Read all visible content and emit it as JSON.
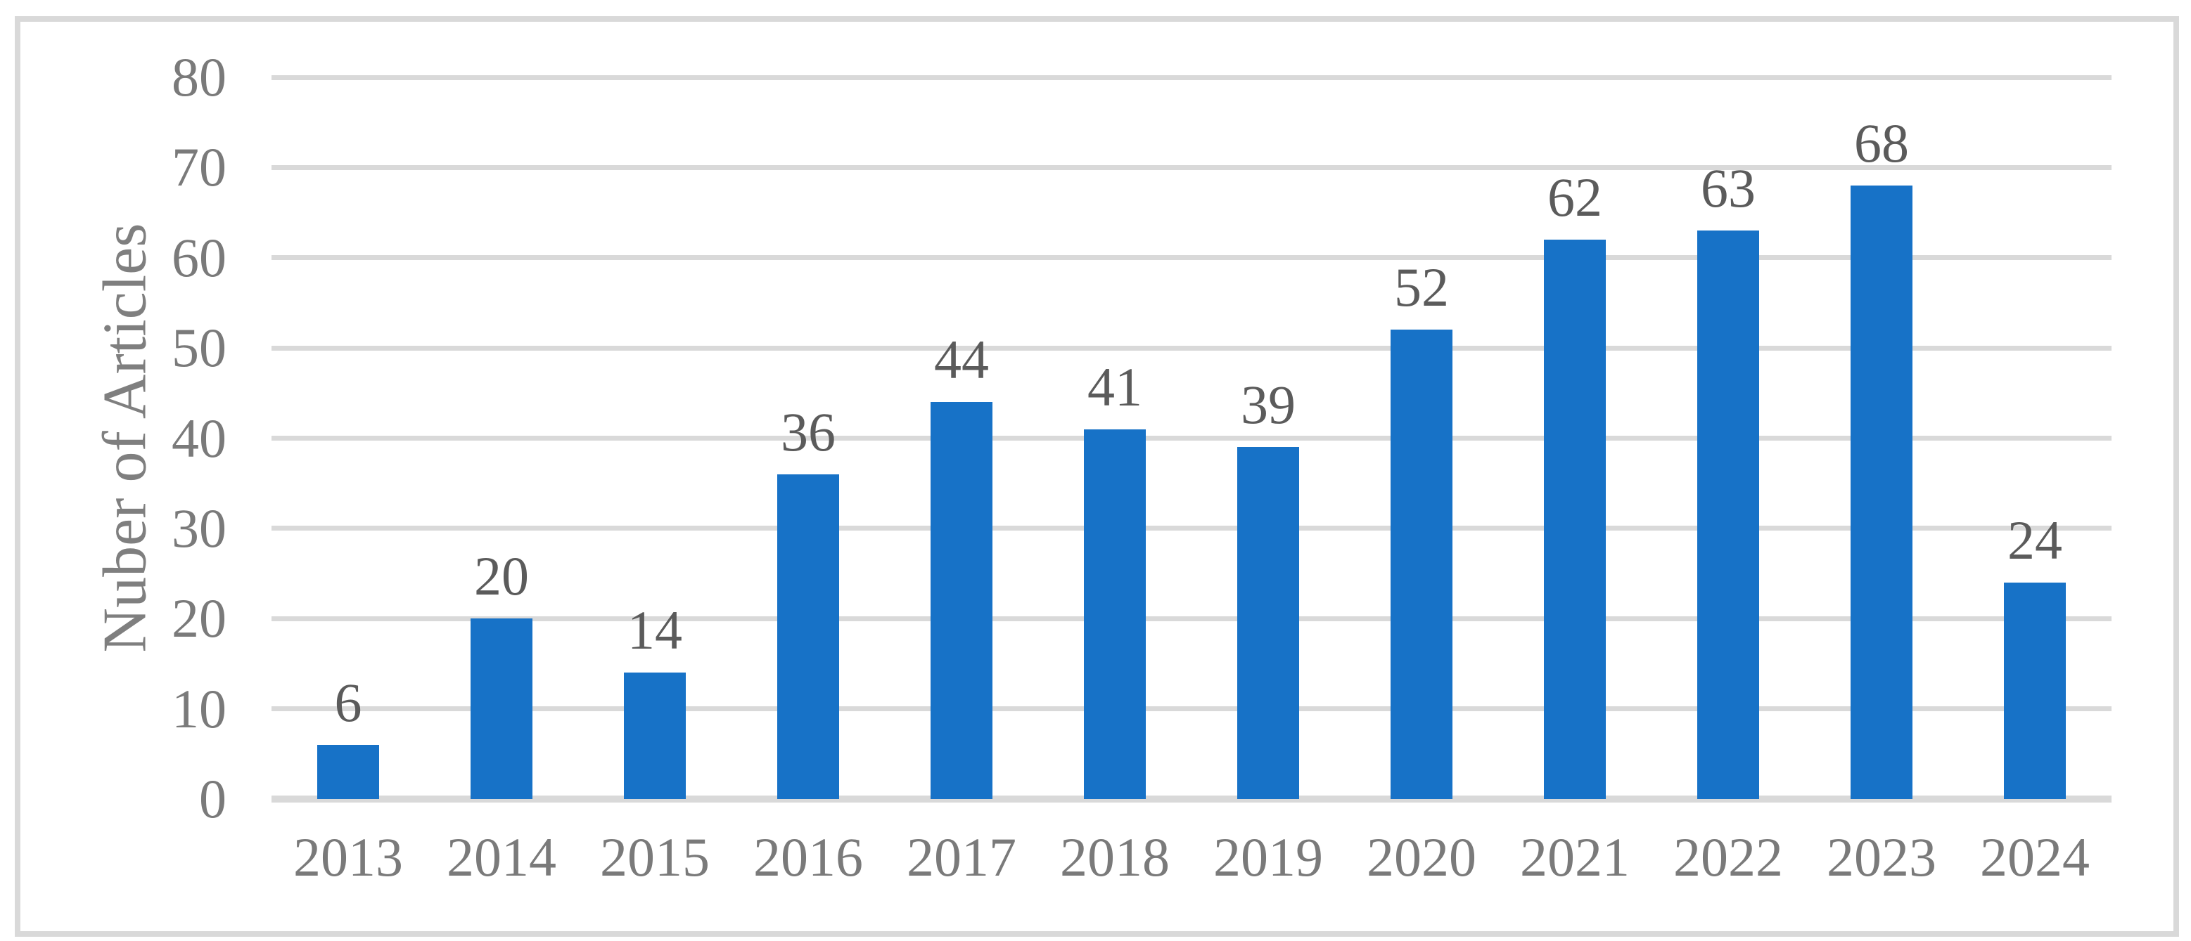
{
  "figure": {
    "background_color": "#FFFFFF",
    "frame_color": "#D9D9D9"
  },
  "chart_data": {
    "type": "bar",
    "title": "",
    "xlabel": "",
    "ylabel": "Nuber of Articles",
    "categories": [
      "2013",
      "2014",
      "2015",
      "2016",
      "2017",
      "2018",
      "2019",
      "2020",
      "2021",
      "2022",
      "2023",
      "2024"
    ],
    "values": [
      6,
      20,
      14,
      36,
      44,
      41,
      39,
      52,
      62,
      63,
      68,
      24
    ],
    "data_labels": [
      "6",
      "20",
      "14",
      "36",
      "44",
      "41",
      "39",
      "52",
      "62",
      "63",
      "68",
      "24"
    ],
    "ylim": [
      0,
      80
    ],
    "y_ticks": [
      0,
      10,
      20,
      30,
      40,
      50,
      60,
      70,
      80
    ],
    "grid": "horizontal-major",
    "legend": "none",
    "bar_color": "#1772C7",
    "gridline_color": "#D9D9D9",
    "tick_label_color": "#7A7A7A",
    "data_label_color": "#5B5B5B",
    "axis_title_color": "#7F7F7F"
  }
}
